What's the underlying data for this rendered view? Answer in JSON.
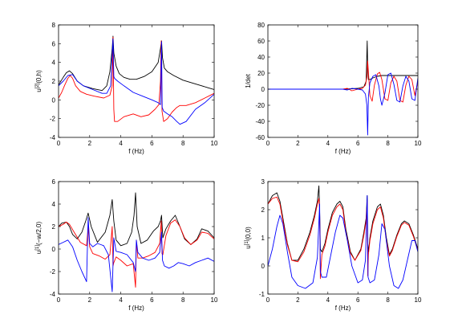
{
  "colors": {
    "black": "#000000",
    "red": "#ff0000",
    "blue": "#0000ff"
  },
  "chart_data": [
    {
      "type": "line",
      "title": "",
      "xlabel": "f (Hz)",
      "ylabel": "u[2](0,h)",
      "ylabel_parts": {
        "base": "u",
        "sup": "[2]",
        "arg": "(0,h)"
      },
      "xlim": [
        0,
        10
      ],
      "ylim": [
        -4,
        8
      ],
      "xticks": [
        0,
        2,
        4,
        6,
        8,
        10
      ],
      "yticks": [
        -4,
        -2,
        0,
        2,
        4,
        6,
        8
      ],
      "series": [
        {
          "color": "#000000",
          "x": [
            0,
            0.3,
            0.5,
            0.7,
            0.9,
            1.2,
            1.6,
            2.2,
            2.8,
            3.1,
            3.3,
            3.45,
            3.5,
            3.55,
            3.7,
            3.9,
            4.2,
            4.6,
            5.0,
            5.5,
            6.0,
            6.4,
            6.55,
            6.62,
            6.68,
            6.8,
            7.0,
            7.4,
            8.0,
            8.6,
            9.2,
            9.6,
            10
          ],
          "y": [
            1.6,
            2.4,
            2.9,
            3.1,
            2.8,
            2.0,
            1.5,
            1.2,
            1.0,
            1.5,
            3.0,
            5.5,
            6.8,
            5.0,
            3.6,
            2.8,
            2.4,
            2.2,
            2.2,
            2.5,
            3.0,
            4.0,
            5.5,
            6.3,
            4.5,
            3.4,
            3.0,
            2.6,
            2.1,
            1.8,
            1.5,
            1.3,
            1.1
          ]
        },
        {
          "color": "#ff0000",
          "x": [
            0,
            0.2,
            0.4,
            0.6,
            0.75,
            0.9,
            1.1,
            1.4,
            1.8,
            2.3,
            2.9,
            3.3,
            3.45,
            3.5,
            3.55,
            3.6,
            3.8,
            4.2,
            4.8,
            5.3,
            5.8,
            6.2,
            6.45,
            6.55,
            6.6,
            6.65,
            6.75,
            7.0,
            7.3,
            7.6,
            7.8,
            8.2,
            8.8,
            9.4,
            10
          ],
          "y": [
            0.2,
            0.8,
            1.6,
            2.3,
            2.6,
            2.3,
            1.5,
            0.9,
            0.6,
            0.4,
            0.2,
            0.5,
            1.5,
            6.7,
            -1.0,
            -2.3,
            -2.3,
            -1.8,
            -1.5,
            -1.8,
            -1.6,
            -1.0,
            -0.5,
            2.0,
            6.3,
            -1.2,
            -2.3,
            -2.0,
            -1.3,
            -0.8,
            -0.6,
            -0.6,
            -0.3,
            0.2,
            0.7
          ]
        },
        {
          "color": "#0000ff",
          "x": [
            0,
            0.3,
            0.6,
            0.9,
            1.2,
            1.6,
            2.2,
            2.8,
            3.1,
            3.35,
            3.5,
            3.55,
            3.6,
            3.8,
            4.2,
            4.8,
            5.4,
            6.0,
            6.4,
            6.55,
            6.62,
            6.66,
            6.75,
            7.0,
            7.3,
            7.6,
            7.8,
            8.2,
            8.8,
            9.4,
            10
          ],
          "y": [
            1.5,
            2.0,
            2.6,
            2.7,
            2.0,
            1.5,
            1.1,
            0.7,
            0.7,
            1.5,
            6.5,
            2.5,
            2.3,
            2.0,
            1.5,
            0.8,
            0.4,
            0.0,
            -0.3,
            -0.5,
            6.2,
            -0.8,
            -1.2,
            -1.5,
            -1.8,
            -2.3,
            -2.6,
            -2.3,
            -1.0,
            -0.3,
            0.6
          ]
        }
      ]
    },
    {
      "type": "line",
      "title": "",
      "xlabel": "f (Hz)",
      "ylabel": "1/det",
      "xlim": [
        0,
        10
      ],
      "ylim": [
        -60,
        80
      ],
      "xticks": [
        0,
        2,
        4,
        6,
        8,
        10
      ],
      "yticks": [
        -60,
        -40,
        -20,
        0,
        20,
        40,
        60,
        80
      ],
      "series": [
        {
          "color": "#000000",
          "x": [
            0,
            1,
            2,
            3,
            4,
            5,
            5.6,
            6.0,
            6.4,
            6.55,
            6.62,
            6.66,
            6.7,
            6.8,
            7.0,
            7.3,
            7.6,
            8.0,
            8.5,
            9.0,
            9.5,
            10
          ],
          "y": [
            0,
            0,
            0,
            0,
            0,
            0,
            0.5,
            1,
            3,
            10,
            60,
            25,
            12,
            12,
            14,
            16,
            17,
            17,
            17,
            17,
            17,
            17
          ]
        },
        {
          "color": "#ff0000",
          "x": [
            0,
            2,
            4,
            5,
            5.3,
            5.6,
            6.0,
            6.3,
            6.5,
            6.6,
            6.65,
            6.7,
            6.8,
            6.95,
            7.1,
            7.3,
            7.45,
            7.6,
            7.8,
            8.0,
            8.2,
            8.4,
            8.6,
            8.8,
            9.0,
            9.2,
            9.4,
            9.6,
            9.8,
            10
          ],
          "y": [
            0,
            0,
            0,
            0,
            1,
            -2,
            0,
            1,
            5,
            15,
            35,
            22,
            -8,
            -15,
            5,
            19,
            21,
            12,
            -12,
            -14,
            8,
            16,
            10,
            -14,
            -16,
            5,
            16,
            12,
            -8,
            10
          ]
        },
        {
          "color": "#0000ff",
          "x": [
            0,
            2,
            4,
            5,
            5.3,
            5.6,
            6.0,
            6.3,
            6.5,
            6.6,
            6.65,
            6.7,
            6.8,
            7.0,
            7.2,
            7.4,
            7.5,
            7.6,
            7.8,
            8.0,
            8.2,
            8.4,
            8.6,
            8.8,
            9.0,
            9.2,
            9.4,
            9.6,
            9.8,
            10
          ],
          "y": [
            0,
            0,
            0,
            0,
            -1,
            1,
            0,
            -1,
            -6,
            -20,
            -57,
            -10,
            8,
            16,
            18,
            4,
            -12,
            -20,
            -5,
            18,
            20,
            6,
            -14,
            -16,
            4,
            16,
            10,
            -12,
            -14,
            14
          ]
        }
      ]
    },
    {
      "type": "line",
      "title": "",
      "xlabel": "f (Hz)",
      "ylabel": "u[1](-w/2,0)",
      "ylabel_parts": {
        "base": "u",
        "sup": "[1]",
        "arg": "(−w/2,0)"
      },
      "xlim": [
        0,
        10
      ],
      "ylim": [
        -4,
        6
      ],
      "xticks": [
        0,
        2,
        4,
        6,
        8,
        10
      ],
      "yticks": [
        -4,
        -2,
        0,
        2,
        4,
        6
      ],
      "series": [
        {
          "color": "#000000",
          "x": [
            0,
            0.2,
            0.5,
            0.7,
            0.9,
            1.2,
            1.5,
            1.75,
            1.9,
            2.1,
            2.5,
            3.0,
            3.3,
            3.45,
            3.55,
            3.7,
            4.0,
            4.4,
            4.7,
            4.85,
            4.95,
            5.05,
            5.3,
            5.7,
            6.1,
            6.4,
            6.55,
            6.62,
            6.7,
            6.9,
            7.2,
            7.5,
            7.8,
            8.1,
            8.5,
            8.9,
            9.2,
            9.6,
            10
          ],
          "y": [
            2.0,
            2.3,
            2.4,
            2.0,
            1.3,
            0.9,
            1.5,
            2.5,
            3.2,
            2.0,
            0.6,
            1.5,
            3.0,
            4.4,
            2.5,
            0.8,
            0.3,
            0.5,
            1.5,
            3.0,
            5.0,
            2.0,
            0.5,
            0.8,
            1.6,
            2.0,
            2.5,
            3.0,
            1.0,
            1.8,
            2.5,
            3.0,
            2.0,
            0.9,
            0.4,
            0.9,
            1.8,
            1.6,
            1.0
          ]
        },
        {
          "color": "#ff0000",
          "x": [
            0,
            0.3,
            0.5,
            0.7,
            1.0,
            1.4,
            1.8,
            1.9,
            2.0,
            2.2,
            2.6,
            3.0,
            3.3,
            3.45,
            3.5,
            3.55,
            3.7,
            4.0,
            4.4,
            4.8,
            4.95,
            5.0,
            5.1,
            5.4,
            5.8,
            6.2,
            6.5,
            6.6,
            6.65,
            6.7,
            6.9,
            7.2,
            7.5,
            7.8,
            8.1,
            8.5,
            8.9,
            9.2,
            9.6,
            10
          ],
          "y": [
            2.0,
            2.2,
            2.4,
            2.2,
            1.5,
            0.6,
            0.3,
            2.0,
            0.2,
            -0.4,
            -0.6,
            -0.9,
            -0.5,
            2.0,
            -1.5,
            -1.2,
            -0.7,
            -1.0,
            -1.5,
            -1.3,
            -3.4,
            0.8,
            -0.8,
            -0.8,
            -0.6,
            -0.3,
            0.5,
            2.5,
            -0.4,
            -0.5,
            1.2,
            2.3,
            2.6,
            2.0,
            1.0,
            0.4,
            0.8,
            1.5,
            1.4,
            0.9
          ]
        },
        {
          "color": "#0000ff",
          "x": [
            0,
            0.3,
            0.6,
            0.9,
            1.2,
            1.5,
            1.8,
            1.9,
            2.0,
            2.2,
            2.5,
            2.9,
            3.2,
            3.45,
            3.55,
            3.7,
            4.0,
            4.4,
            4.8,
            4.95,
            5.0,
            5.1,
            5.4,
            5.8,
            6.2,
            6.5,
            6.62,
            6.68,
            6.8,
            7.1,
            7.4,
            7.7,
            8.0,
            8.4,
            8.8,
            9.2,
            9.6,
            10
          ],
          "y": [
            0.4,
            0.6,
            0.8,
            0.2,
            -1.0,
            -2.0,
            -2.9,
            2.8,
            0.5,
            0.2,
            0.5,
            0.3,
            -0.5,
            -3.8,
            1.0,
            -0.2,
            -0.3,
            -0.5,
            -1.2,
            -2.0,
            0.8,
            -0.3,
            -0.8,
            -1.0,
            -0.8,
            -0.3,
            1.5,
            -1.0,
            -1.5,
            -1.7,
            -1.5,
            -1.2,
            -1.3,
            -1.5,
            -1.2,
            -1.0,
            -0.8,
            -1.1
          ]
        }
      ]
    },
    {
      "type": "line",
      "title": "",
      "xlabel": "f (Hz)",
      "ylabel": "u[1](0,0)",
      "ylabel_parts": {
        "base": "u",
        "sup": "[1]",
        "arg": "(0,0)"
      },
      "xlim": [
        0,
        10
      ],
      "ylim": [
        -1,
        3
      ],
      "xticks": [
        0,
        2,
        4,
        6,
        8,
        10
      ],
      "yticks": [
        -1,
        0,
        1,
        2,
        3
      ],
      "series": [
        {
          "color": "#000000",
          "x": [
            0,
            0.3,
            0.6,
            0.8,
            1.0,
            1.3,
            1.6,
            2.0,
            2.4,
            2.8,
            3.1,
            3.3,
            3.4,
            3.45,
            3.5,
            3.6,
            3.8,
            4.0,
            4.3,
            4.6,
            4.8,
            5.0,
            5.2,
            5.5,
            5.8,
            6.2,
            6.4,
            6.55,
            6.62,
            6.66,
            6.7,
            6.8,
            7.0,
            7.3,
            7.5,
            7.7,
            7.9,
            8.1,
            8.3,
            8.6,
            8.9,
            9.1,
            9.4,
            9.7,
            10
          ],
          "y": [
            2.2,
            2.5,
            2.6,
            2.3,
            1.7,
            0.8,
            0.2,
            0.2,
            0.6,
            1.2,
            1.8,
            2.3,
            2.85,
            2.0,
            0.6,
            0.5,
            0.8,
            1.3,
            1.9,
            2.2,
            2.3,
            2.1,
            1.3,
            0.5,
            0.2,
            0.6,
            1.2,
            1.7,
            2.5,
            0.8,
            0.5,
            1.0,
            1.6,
            2.1,
            2.2,
            1.8,
            1.0,
            0.4,
            0.6,
            1.1,
            1.5,
            1.6,
            1.5,
            1.1,
            0.6
          ]
        },
        {
          "color": "#ff0000",
          "x": [
            0,
            0.3,
            0.6,
            0.8,
            1.0,
            1.3,
            1.6,
            2.0,
            2.4,
            2.8,
            3.1,
            3.3,
            3.4,
            3.45,
            3.5,
            3.6,
            3.8,
            4.0,
            4.3,
            4.6,
            4.8,
            5.0,
            5.2,
            5.5,
            5.8,
            6.2,
            6.4,
            6.55,
            6.62,
            6.66,
            6.7,
            6.8,
            7.0,
            7.3,
            7.5,
            7.7,
            7.9,
            8.1,
            8.3,
            8.6,
            8.9,
            9.1,
            9.4,
            9.7,
            10
          ],
          "y": [
            2.2,
            2.4,
            2.45,
            2.2,
            1.6,
            0.75,
            0.2,
            0.15,
            0.5,
            1.1,
            1.7,
            2.2,
            2.4,
            2.0,
            -0.45,
            0.4,
            0.7,
            1.2,
            1.8,
            2.1,
            2.2,
            2.0,
            1.2,
            0.45,
            0.2,
            0.55,
            1.1,
            1.6,
            2.3,
            -0.35,
            0.4,
            0.9,
            1.5,
            2.0,
            2.1,
            1.7,
            0.9,
            0.35,
            0.55,
            1.05,
            1.45,
            1.55,
            1.45,
            1.05,
            0.55
          ]
        },
        {
          "color": "#0000ff",
          "x": [
            0,
            0.3,
            0.6,
            0.8,
            1.0,
            1.3,
            1.6,
            2.0,
            2.5,
            3.0,
            3.3,
            3.45,
            3.5,
            3.6,
            3.9,
            4.2,
            4.5,
            4.8,
            5.0,
            5.3,
            5.6,
            6.0,
            6.3,
            6.5,
            6.62,
            6.68,
            6.8,
            7.1,
            7.4,
            7.6,
            7.8,
            8.1,
            8.4,
            8.7,
            9.0,
            9.3,
            9.6,
            9.8,
            10
          ],
          "y": [
            0.0,
            0.6,
            1.4,
            1.8,
            1.5,
            0.5,
            -0.4,
            -0.7,
            -0.8,
            -0.6,
            0.3,
            2.2,
            -0.2,
            -0.4,
            -0.4,
            0.4,
            1.2,
            1.8,
            1.7,
            0.9,
            0.0,
            -0.6,
            -0.5,
            0.2,
            2.5,
            -0.4,
            -0.6,
            -0.5,
            0.4,
            1.5,
            1.3,
            0.0,
            -0.7,
            -0.8,
            -0.5,
            0.2,
            0.9,
            0.9,
            0.5
          ]
        }
      ]
    }
  ]
}
